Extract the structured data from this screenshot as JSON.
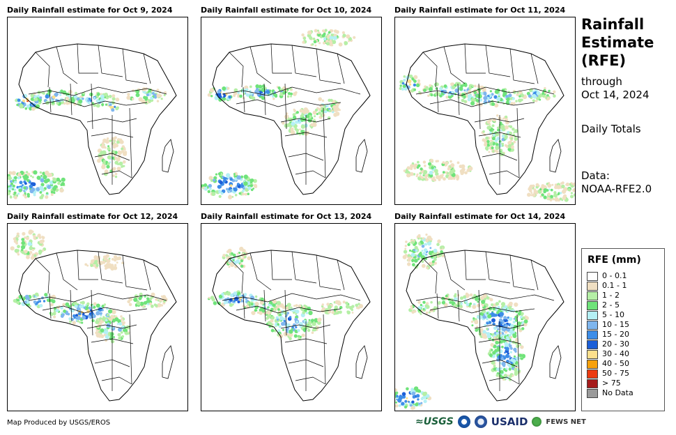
{
  "panels": [
    {
      "title": "Daily Rainfall estimate for Oct 9, 2024"
    },
    {
      "title": "Daily Rainfall estimate for Oct 10, 2024"
    },
    {
      "title": "Daily Rainfall estimate for Oct 11, 2024"
    },
    {
      "title": "Daily Rainfall estimate for Oct 12, 2024"
    },
    {
      "title": "Daily Rainfall estimate for Oct 13, 2024"
    },
    {
      "title": "Daily Rainfall estimate for Oct 14, 2024"
    }
  ],
  "side": {
    "title_line1": "Rainfall",
    "title_line2": "Estimate",
    "title_line3": "(RFE)",
    "through_label": "through",
    "through_date": "Oct 14, 2024",
    "totals": "Daily Totals",
    "data_label": "Data:",
    "data_source": "NOAA-RFE2.0"
  },
  "legend": {
    "title": "RFE (mm)",
    "items": [
      {
        "label": "0 - 0.1",
        "color": "#ffffff"
      },
      {
        "label": "0.1 - 1",
        "color": "#f0dfc2"
      },
      {
        "label": "1 - 2",
        "color": "#b5efa6"
      },
      {
        "label": "2 - 5",
        "color": "#6fe37a"
      },
      {
        "label": "5 - 10",
        "color": "#b4f0f5"
      },
      {
        "label": "10 - 15",
        "color": "#7fb6ee"
      },
      {
        "label": "15 - 20",
        "color": "#3d8de8"
      },
      {
        "label": "20 - 30",
        "color": "#1c5fd8"
      },
      {
        "label": "30 - 40",
        "color": "#fde08d"
      },
      {
        "label": "40 - 50",
        "color": "#f7a10c"
      },
      {
        "label": "50 - 75",
        "color": "#ec3b12"
      },
      {
        "label": "> 75",
        "color": "#a51b1b"
      },
      {
        "label": "No Data",
        "color": "#9a9a9a"
      }
    ]
  },
  "footer": {
    "credit": "Map Produced by USGS/EROS",
    "usgs": "≈USGS",
    "usaid": "USAID",
    "fews": "FEWS NET"
  }
}
